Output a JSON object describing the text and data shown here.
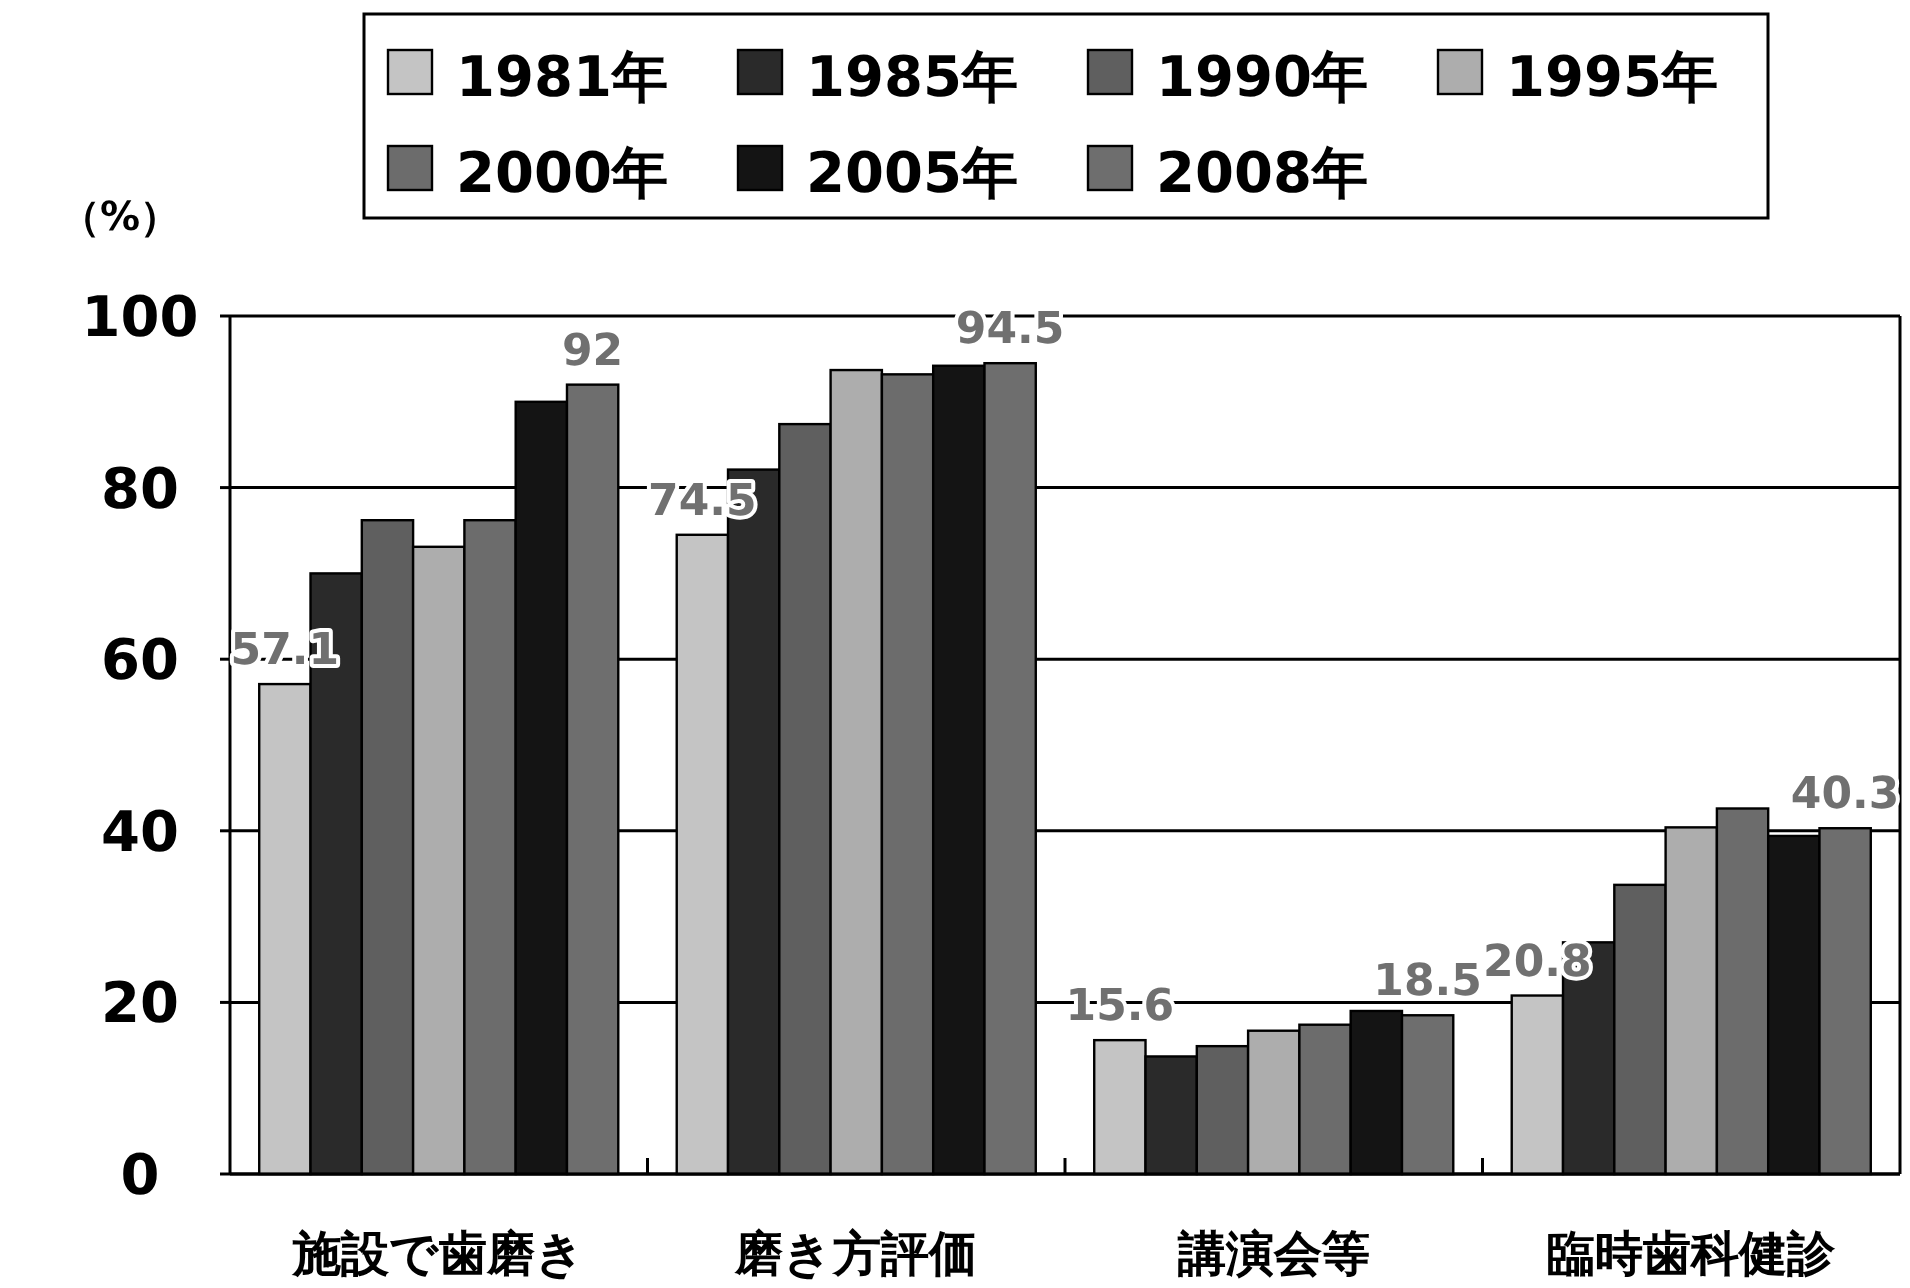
{
  "chart_data": {
    "type": "bar",
    "ylabel": "（%）",
    "categories": [
      "施設で歯磨き",
      "磨き方評価",
      "講演会等",
      "臨時歯科健診"
    ],
    "series": [
      {
        "name": "1981年",
        "color": "#c4c4c4",
        "values": [
          57.1,
          74.5,
          15.6,
          20.8
        ],
        "value_labels": [
          "57.1",
          "74.5",
          "15.6",
          "20.8"
        ]
      },
      {
        "name": "1985年",
        "color": "#2a2a2a",
        "values": [
          70,
          82.1,
          13.7,
          27
        ]
      },
      {
        "name": "1990年",
        "color": "#5f5f5f",
        "values": [
          76.2,
          87.4,
          14.9,
          33.7
        ]
      },
      {
        "name": "1995年",
        "color": "#adadad",
        "values": [
          73.1,
          93.7,
          16.7,
          40.4
        ]
      },
      {
        "name": "2000年",
        "color": "#6c6c6c",
        "values": [
          76.2,
          93.2,
          17.4,
          42.6
        ]
      },
      {
        "name": "2005年",
        "color": "#141414",
        "values": [
          90,
          94.2,
          19,
          39.4
        ]
      },
      {
        "name": "2008年",
        "color": "#6e6e6e",
        "values": [
          92,
          94.5,
          18.5,
          40.3
        ],
        "value_labels": [
          "92",
          "94.5",
          "18.5",
          "40.3"
        ]
      }
    ],
    "ylim": [
      0,
      100
    ],
    "yticks": [
      0,
      20,
      40,
      60,
      80,
      100
    ],
    "grid": "y",
    "legend": "top"
  }
}
